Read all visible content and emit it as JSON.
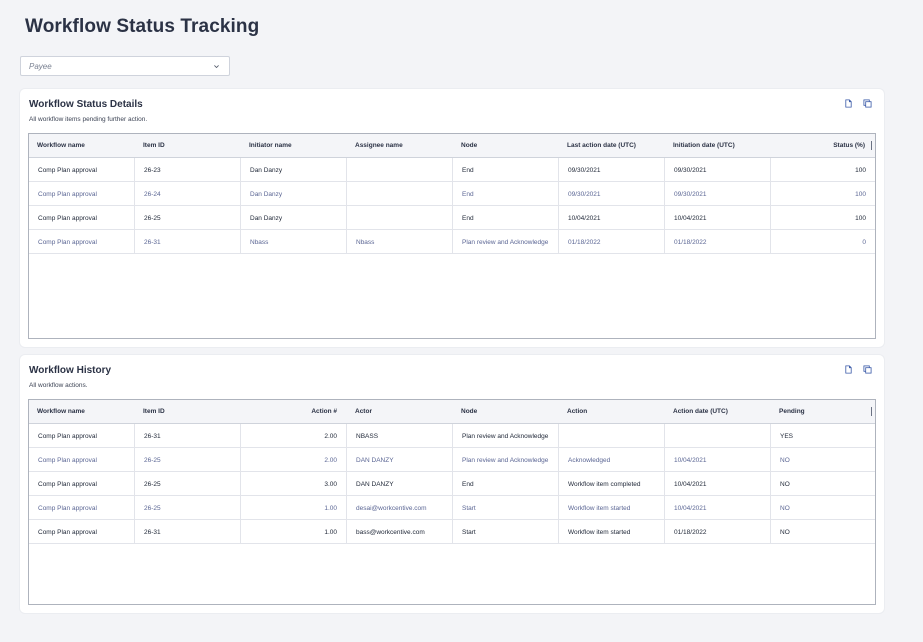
{
  "page": {
    "title": "Workflow Status Tracking"
  },
  "payee": {
    "placeholder": "Payee"
  },
  "status_details": {
    "title": "Workflow Status Details",
    "subtitle": "All workflow items pending further action.",
    "icons": [
      "export-icon",
      "copy-icon"
    ],
    "columns": [
      "Workflow name",
      "Item ID",
      "Initiator name",
      "Assignee name",
      "Node",
      "Last action date (UTC)",
      "Initiation date (UTC)",
      "Status (%)"
    ],
    "rows": [
      [
        "Comp Plan approval",
        "26-23",
        "Dan Danzy",
        "",
        "End",
        "09/30/2021",
        "09/30/2021",
        "100"
      ],
      [
        "Comp Plan approval",
        "26-24",
        "Dan Danzy",
        "",
        "End",
        "09/30/2021",
        "09/30/2021",
        "100"
      ],
      [
        "Comp Plan approval",
        "26-25",
        "Dan Danzy",
        "",
        "End",
        "10/04/2021",
        "10/04/2021",
        "100"
      ],
      [
        "Comp Plan approval",
        "26-31",
        "Nbass",
        "Nbass",
        "Plan review and Acknowledge",
        "01/18/2022",
        "01/18/2022",
        "0"
      ]
    ]
  },
  "history": {
    "title": "Workflow History",
    "subtitle": "All workflow actions.",
    "icons": [
      "export-icon",
      "copy-icon"
    ],
    "columns": [
      "Workflow name",
      "Item ID",
      "Action #",
      "Actor",
      "Node",
      "Action",
      "Action date (UTC)",
      "Pending"
    ],
    "rows": [
      [
        "Comp Plan approval",
        "26-31",
        "2.00",
        "NBASS",
        "Plan review and Acknowledge",
        "",
        "",
        "YES"
      ],
      [
        "Comp Plan approval",
        "26-25",
        "2.00",
        "DAN DANZY",
        "Plan review and Acknowledge",
        "Acknowledged",
        "10/04/2021",
        "NO"
      ],
      [
        "Comp Plan approval",
        "26-25",
        "3.00",
        "DAN DANZY",
        "End",
        "Workflow item completed",
        "10/04/2021",
        "NO"
      ],
      [
        "Comp Plan approval",
        "26-25",
        "1.00",
        "desai@workcentive.com",
        "Start",
        "Workflow item started",
        "10/04/2021",
        "NO"
      ],
      [
        "Comp Plan approval",
        "26-31",
        "1.00",
        "bass@workcentive.com",
        "Start",
        "Workflow item started",
        "01/18/2022",
        "NO"
      ]
    ]
  }
}
